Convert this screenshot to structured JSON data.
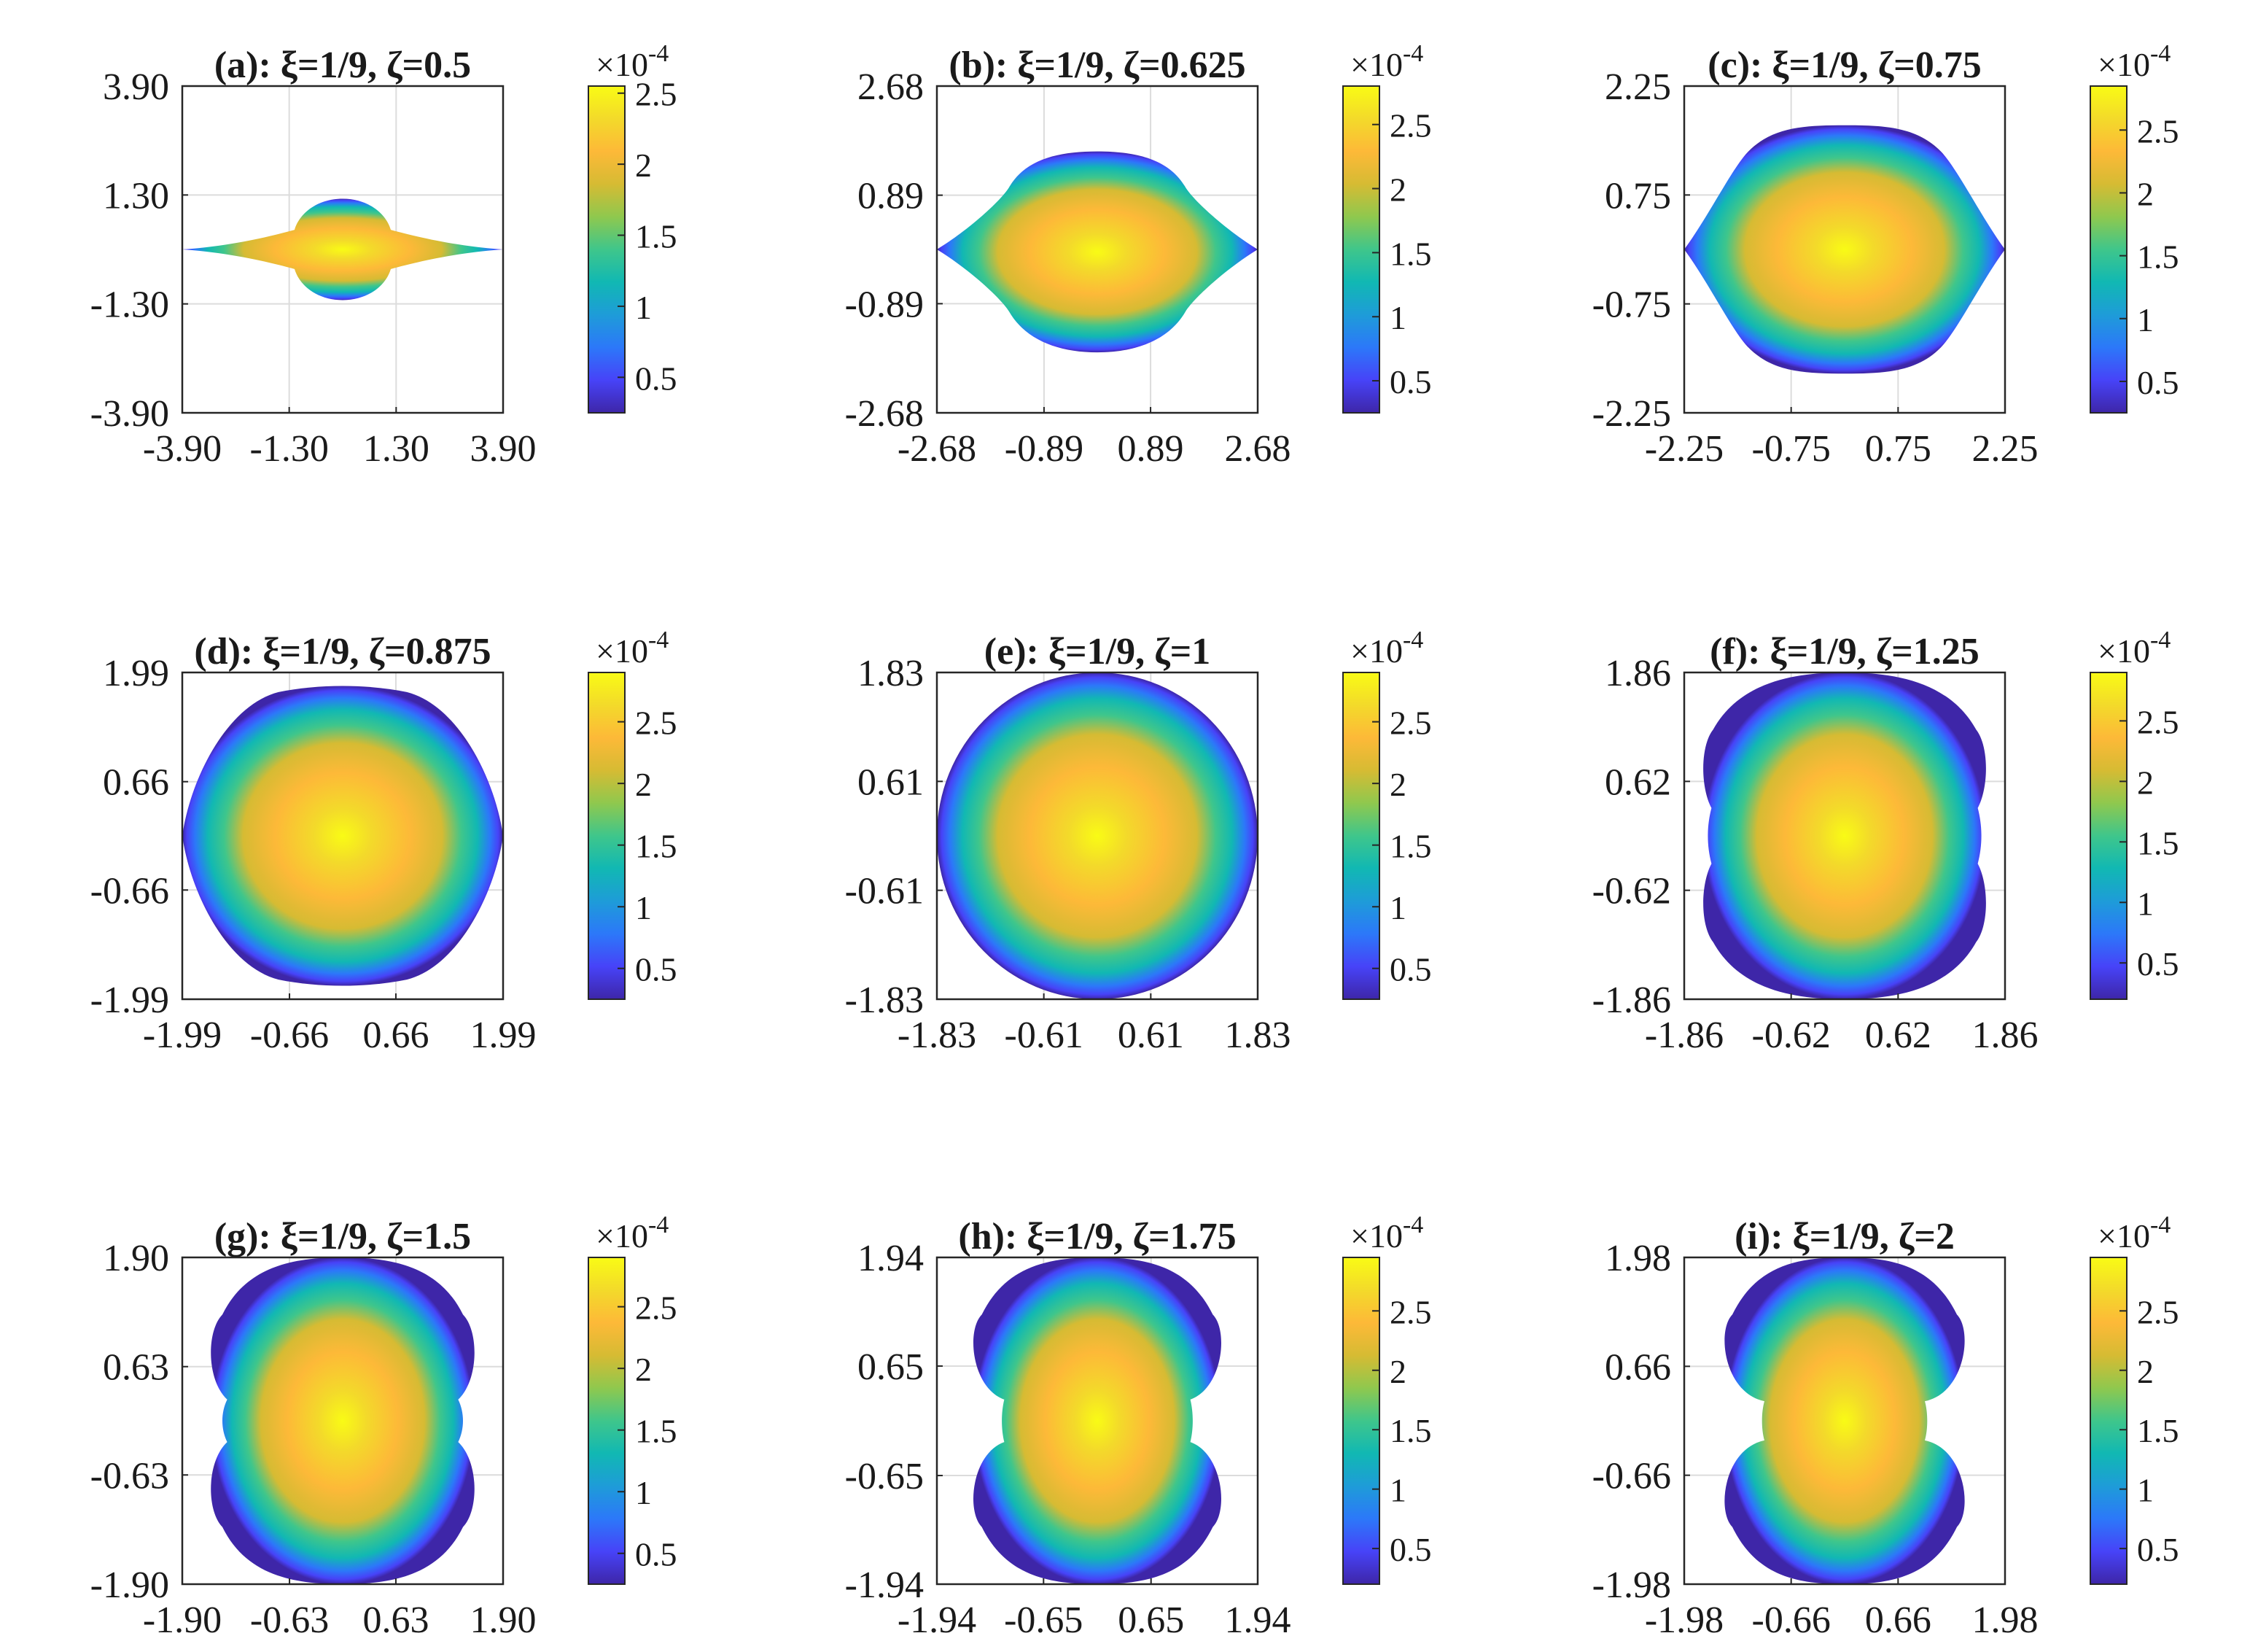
{
  "colors": {
    "colormap_parula": [
      "#3e26a8",
      "#4743f8",
      "#2c78f9",
      "#1e9cd8",
      "#11b8b3",
      "#3fc68b",
      "#8fc84e",
      "#d6bb33",
      "#fdb938",
      "#f3da2a",
      "#f9fb15"
    ],
    "axis": "#262626",
    "grid": "#dcdcdc"
  },
  "chart_data": [
    {
      "panel": "a",
      "type": "heatmap",
      "title": "(a): ξ=1/9, ζ=0.5",
      "xi": "1/9",
      "zeta": 0.5,
      "xlim": [
        -3.9,
        3.9
      ],
      "ylim": [
        -3.9,
        3.9
      ],
      "xticks": [
        "-3.90",
        "-1.30",
        "1.30",
        "3.90"
      ],
      "yticks": [
        "3.90",
        "1.30",
        "-1.30",
        "-3.90"
      ],
      "colorbar": {
        "exponent": "×10",
        "exponent_power": "-4",
        "ticks": [
          "2.5",
          "2",
          "1.5",
          "1",
          "0.5"
        ],
        "range": [
          0.25,
          2.55
        ]
      }
    },
    {
      "panel": "b",
      "type": "heatmap",
      "title": "(b): ξ=1/9, ζ=0.625",
      "xi": "1/9",
      "zeta": 0.625,
      "xlim": [
        -2.68,
        2.68
      ],
      "ylim": [
        -2.68,
        2.68
      ],
      "xticks": [
        "-2.68",
        "-0.89",
        "0.89",
        "2.68"
      ],
      "yticks": [
        "2.68",
        "0.89",
        "-0.89",
        "-2.68"
      ],
      "colorbar": {
        "exponent": "×10",
        "exponent_power": "-4",
        "ticks": [
          "2.5",
          "2",
          "1.5",
          "1",
          "0.5"
        ],
        "range": [
          0.25,
          2.8
        ]
      }
    },
    {
      "panel": "c",
      "type": "heatmap",
      "title": "(c): ξ=1/9, ζ=0.75",
      "xi": "1/9",
      "zeta": 0.75,
      "xlim": [
        -2.25,
        2.25
      ],
      "ylim": [
        -2.25,
        2.25
      ],
      "xticks": [
        "-2.25",
        "-0.75",
        "0.75",
        "2.25"
      ],
      "yticks": [
        "2.25",
        "0.75",
        "-0.75",
        "-2.25"
      ],
      "colorbar": {
        "exponent": "×10",
        "exponent_power": "-4",
        "ticks": [
          "2.5",
          "2",
          "1.5",
          "1",
          "0.5"
        ],
        "range": [
          0.25,
          2.85
        ]
      }
    },
    {
      "panel": "d",
      "type": "heatmap",
      "title": "(d): ξ=1/9, ζ=0.875",
      "xi": "1/9",
      "zeta": 0.875,
      "xlim": [
        -1.99,
        1.99
      ],
      "ylim": [
        -1.99,
        1.99
      ],
      "xticks": [
        "-1.99",
        "-0.66",
        "0.66",
        "1.99"
      ],
      "yticks": [
        "1.99",
        "0.66",
        "-0.66",
        "-1.99"
      ],
      "colorbar": {
        "exponent": "×10",
        "exponent_power": "-4",
        "ticks": [
          "2.5",
          "2",
          "1.5",
          "1",
          "0.5"
        ],
        "range": [
          0.25,
          2.9
        ]
      }
    },
    {
      "panel": "e",
      "type": "heatmap",
      "title": "(e): ξ=1/9, ζ=1",
      "xi": "1/9",
      "zeta": 1,
      "xlim": [
        -1.83,
        1.83
      ],
      "ylim": [
        -1.83,
        1.83
      ],
      "xticks": [
        "-1.83",
        "-0.61",
        "0.61",
        "1.83"
      ],
      "yticks": [
        "1.83",
        "0.61",
        "-0.61",
        "-1.83"
      ],
      "colorbar": {
        "exponent": "×10",
        "exponent_power": "-4",
        "ticks": [
          "2.5",
          "2",
          "1.5",
          "1",
          "0.5"
        ],
        "range": [
          0.25,
          2.9
        ]
      }
    },
    {
      "panel": "f",
      "type": "heatmap",
      "title": "(f): ξ=1/9, ζ=1.25",
      "xi": "1/9",
      "zeta": 1.25,
      "xlim": [
        -1.86,
        1.86
      ],
      "ylim": [
        -1.86,
        1.86
      ],
      "xticks": [
        "-1.86",
        "-0.62",
        "0.62",
        "1.86"
      ],
      "yticks": [
        "1.86",
        "0.62",
        "-0.62",
        "-1.86"
      ],
      "colorbar": {
        "exponent": "×10",
        "exponent_power": "-4",
        "ticks": [
          "2.5",
          "2",
          "1.5",
          "1",
          "0.5"
        ],
        "range": [
          0.2,
          2.9
        ]
      }
    },
    {
      "panel": "g",
      "type": "heatmap",
      "title": "(g): ξ=1/9, ζ=1.5",
      "xi": "1/9",
      "zeta": 1.5,
      "xlim": [
        -1.9,
        1.9
      ],
      "ylim": [
        -1.9,
        1.9
      ],
      "xticks": [
        "-1.90",
        "-0.63",
        "0.63",
        "1.90"
      ],
      "yticks": [
        "1.90",
        "0.63",
        "-0.63",
        "-1.90"
      ],
      "colorbar": {
        "exponent": "×10",
        "exponent_power": "-4",
        "ticks": [
          "2.5",
          "2",
          "1.5",
          "1",
          "0.5"
        ],
        "range": [
          0.25,
          2.9
        ]
      }
    },
    {
      "panel": "h",
      "type": "heatmap",
      "title": "(h): ξ=1/9, ζ=1.75",
      "xi": "1/9",
      "zeta": 1.75,
      "xlim": [
        -1.94,
        1.94
      ],
      "ylim": [
        -1.94,
        1.94
      ],
      "xticks": [
        "-1.94",
        "-0.65",
        "0.65",
        "1.94"
      ],
      "yticks": [
        "1.94",
        "0.65",
        "-0.65",
        "-1.94"
      ],
      "colorbar": {
        "exponent": "×10",
        "exponent_power": "-4",
        "ticks": [
          "2.5",
          "2",
          "1.5",
          "1",
          "0.5"
        ],
        "range": [
          0.2,
          2.95
        ]
      }
    },
    {
      "panel": "i",
      "type": "heatmap",
      "title": "(i): ξ=1/9, ζ=2",
      "xi": "1/9",
      "zeta": 2,
      "xlim": [
        -1.98,
        1.98
      ],
      "ylim": [
        -1.98,
        1.98
      ],
      "xticks": [
        "-1.98",
        "-0.66",
        "0.66",
        "1.98"
      ],
      "yticks": [
        "1.98",
        "0.66",
        "-0.66",
        "-1.98"
      ],
      "colorbar": {
        "exponent": "×10",
        "exponent_power": "-4",
        "ticks": [
          "2.5",
          "2",
          "1.5",
          "1",
          "0.5"
        ],
        "range": [
          0.2,
          2.95
        ]
      }
    }
  ]
}
